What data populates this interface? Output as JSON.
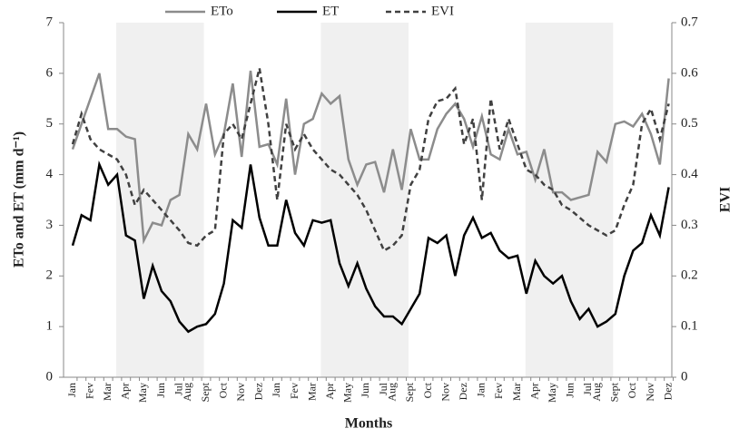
{
  "chart_data": {
    "type": "line",
    "categories": [
      "Jan",
      null,
      "Fev",
      null,
      "Mar",
      null,
      "Apr",
      null,
      "May",
      null,
      "Jun",
      null,
      "Jul",
      "Aug",
      null,
      "Sept",
      null,
      "Oct",
      null,
      "Nov",
      null,
      "Dez",
      null,
      "Jan",
      null,
      "Fev",
      null,
      "Mar",
      null,
      "Apr",
      null,
      "May",
      null,
      "Jun",
      null,
      "Jul",
      "Aug",
      null,
      "Sept",
      null,
      "Oct",
      null,
      "Nov",
      null,
      "Dez",
      null,
      "Jan",
      null,
      "Fev",
      null,
      "Mar",
      null,
      "Apr",
      null,
      "May",
      null,
      "Jun",
      null,
      "Jul",
      "Aug",
      null,
      "Sept",
      null,
      "Oct",
      null,
      "Nov",
      null,
      "Dez"
    ],
    "x_label": "Months",
    "y_label": "ETo and ET (mm d⁻¹)",
    "y2_label": "EVI",
    "ylim": [
      0,
      7
    ],
    "yticks": [
      0,
      1,
      2,
      3,
      4,
      5,
      6,
      7
    ],
    "y2lim": [
      0,
      0.7
    ],
    "y2ticks": [
      {
        "value": 0,
        "label": "0"
      },
      0.1,
      0.2,
      0.3,
      0.4,
      0.5,
      0.6,
      0.7
    ],
    "legend": "top",
    "series": [
      {
        "name": "ETo",
        "color": "#8c8c8c",
        "dash": false,
        "values": [
          4.5,
          5.0,
          5.5,
          6.0,
          4.9,
          4.9,
          4.75,
          4.7,
          2.7,
          3.05,
          3.0,
          3.5,
          3.6,
          4.8,
          4.5,
          5.4,
          4.4,
          4.8,
          5.8,
          4.35,
          6.05,
          4.55,
          4.6,
          4.2,
          5.5,
          4.0,
          5.0,
          5.1,
          5.6,
          5.4,
          5.55,
          4.3,
          3.8,
          4.2,
          4.25,
          3.65,
          4.5,
          3.7,
          4.9,
          4.3,
          4.3,
          4.9,
          5.2,
          5.4,
          5.1,
          4.55,
          5.15,
          4.4,
          4.3,
          4.9,
          4.4,
          4.45,
          3.9,
          4.5,
          3.65,
          3.65,
          3.5,
          3.55,
          3.6,
          4.45,
          4.25,
          5.0,
          5.05,
          4.95,
          5.2,
          4.8,
          4.2,
          5.9
        ]
      },
      {
        "name": "ET",
        "color": "#000000",
        "dash": false,
        "values": [
          2.6,
          3.2,
          3.1,
          4.2,
          3.8,
          4.0,
          2.8,
          2.7,
          1.55,
          2.2,
          1.7,
          1.5,
          1.1,
          0.9,
          1.0,
          1.05,
          1.25,
          1.85,
          3.1,
          2.95,
          4.2,
          3.15,
          2.6,
          2.6,
          3.5,
          2.85,
          2.6,
          3.1,
          3.05,
          3.1,
          2.25,
          1.8,
          2.25,
          1.75,
          1.4,
          1.2,
          1.2,
          1.05,
          1.35,
          1.65,
          2.75,
          2.65,
          2.8,
          2.0,
          2.8,
          3.15,
          2.75,
          2.85,
          2.5,
          2.35,
          2.4,
          1.65,
          2.3,
          2.0,
          1.85,
          2.0,
          1.5,
          1.15,
          1.35,
          1.0,
          1.1,
          1.25,
          2.0,
          2.5,
          2.65,
          3.2,
          2.8,
          3.75
        ]
      },
      {
        "name": "EVI",
        "color": "#404040",
        "dash": true,
        "axis": "y2",
        "values": [
          0.46,
          0.52,
          0.47,
          0.45,
          0.44,
          0.43,
          0.4,
          0.34,
          0.37,
          0.35,
          0.33,
          0.31,
          0.29,
          0.265,
          0.26,
          0.28,
          0.29,
          0.48,
          0.5,
          0.47,
          0.54,
          0.61,
          0.5,
          0.35,
          0.5,
          0.45,
          0.48,
          0.45,
          0.43,
          0.41,
          0.4,
          0.38,
          0.36,
          0.33,
          0.29,
          0.25,
          0.26,
          0.28,
          0.38,
          0.41,
          0.51,
          0.545,
          0.55,
          0.57,
          0.46,
          0.51,
          0.35,
          0.55,
          0.45,
          0.51,
          0.46,
          0.41,
          0.4,
          0.38,
          0.37,
          0.34,
          0.33,
          0.315,
          0.3,
          0.29,
          0.28,
          0.29,
          0.34,
          0.38,
          0.5,
          0.53,
          0.47,
          0.54
        ]
      }
    ]
  }
}
